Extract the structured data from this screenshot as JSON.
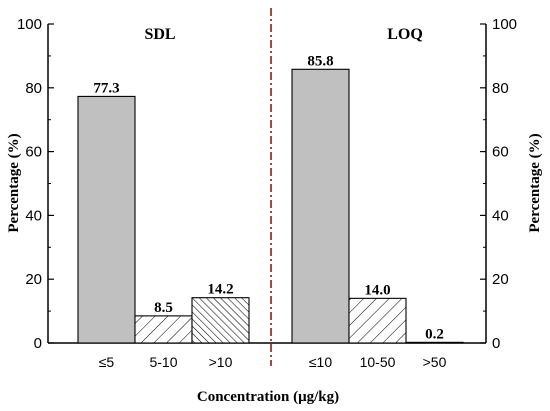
{
  "chart_data": {
    "type": "bar",
    "ylabel": "Percentage (%)",
    "xlabel": "Concentration (μg/kg)",
    "ylim": [
      0,
      100
    ],
    "yticks": [
      0,
      20,
      40,
      60,
      80,
      100
    ],
    "grid": false,
    "colors": {
      "solid": "#c0c0c0",
      "hatch_stroke": "#000000",
      "divider": "#8b1a1a"
    },
    "panels": [
      {
        "title": "SDL",
        "categories": [
          "≤5",
          "5-10",
          ">10"
        ],
        "values": [
          77.3,
          8.5,
          14.2
        ],
        "value_labels": [
          "77.3",
          "8.5",
          "14.2"
        ],
        "fills": [
          "solid",
          "hatch-sparse",
          "hatch-dense"
        ]
      },
      {
        "title": "LOQ",
        "categories": [
          "≤10",
          "10-50",
          ">50"
        ],
        "values": [
          85.8,
          14.0,
          0.2
        ],
        "value_labels": [
          "85.8",
          "14.0",
          "0.2"
        ],
        "fills": [
          "solid",
          "hatch-sparse",
          "hatch-dense"
        ]
      }
    ]
  }
}
